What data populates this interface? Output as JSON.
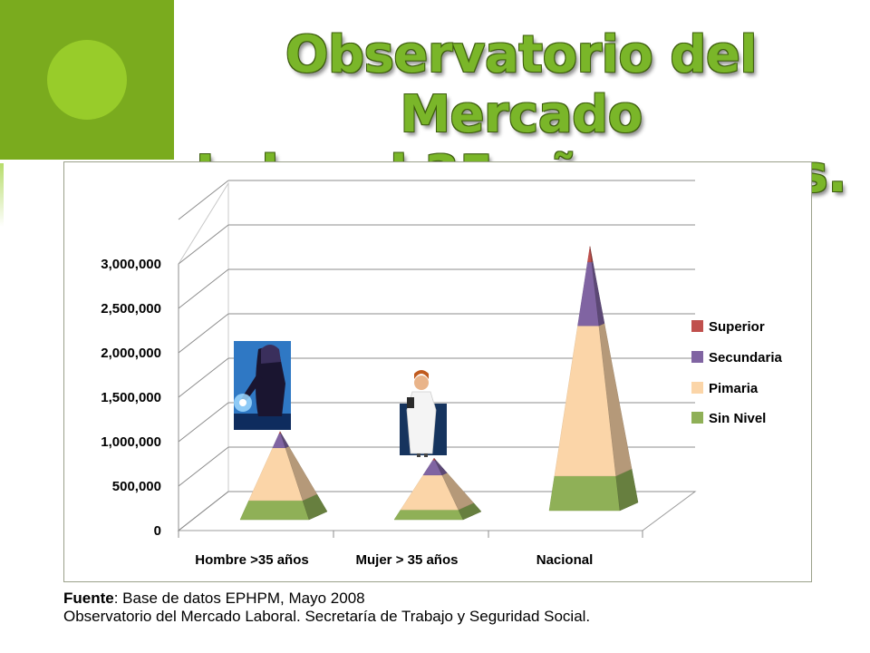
{
  "title_lines": [
    "Observatorio del Mercado",
    "Laboral 35 años y mas."
  ],
  "source": {
    "label": "Fuente",
    "line1_rest": ": Base de datos EPHPM, Mayo 2008",
    "line2": "Observatorio del Mercado Laboral. Secretaría de Trabajo y Seguridad Social."
  },
  "colors": {
    "title": "#7ab629",
    "superior": "#c0504d",
    "secundaria": "#8064a2",
    "pimaria": "#fbd5a8",
    "sin_nivel": "#8fb057"
  },
  "icons": [
    "welder-clipart",
    "doctor-clipart"
  ],
  "chart_data": {
    "type": "bar",
    "subtype": "3d-stacked-pyramid",
    "categories": [
      "Hombre >35 años",
      "Mujer > 35 años",
      "Nacional"
    ],
    "series": [
      {
        "name": "Sin Nivel",
        "values": [
          200000,
          100000,
          380000
        ]
      },
      {
        "name": "Pimaria",
        "values": [
          550000,
          350000,
          1650000
        ]
      },
      {
        "name": "Secundaria",
        "values": [
          150000,
          150000,
          700000
        ]
      },
      {
        "name": "Superior",
        "values": [
          20000,
          20000,
          170000
        ]
      }
    ],
    "legend_order": [
      "Superior",
      "Secundaria",
      "Pimaria",
      "Sin Nivel"
    ],
    "yticks": [
      "0",
      "500,000",
      "1,000,000",
      "1,500,000",
      "2,000,000",
      "2,500,000",
      "3,000,000"
    ],
    "ylim": [
      0,
      3000000
    ],
    "grid": true,
    "legend_position": "right"
  }
}
